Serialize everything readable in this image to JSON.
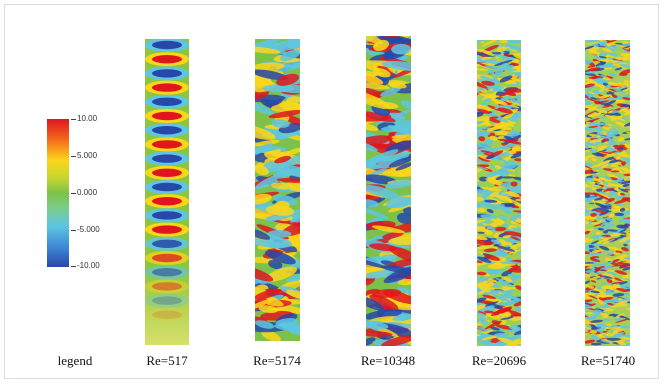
{
  "legend": {
    "caption": "legend",
    "ticks": [
      "10.00",
      "5.000",
      "0.000",
      "-5.000",
      "-10.00"
    ]
  },
  "panels": [
    {
      "caption": "Re=517"
    },
    {
      "caption": "Re=5174"
    },
    {
      "caption": "Re=10348"
    },
    {
      "caption": "Re=20696"
    },
    {
      "caption": "Re=51740"
    }
  ],
  "colors": {
    "max": "#e0161e",
    "high": "#fbd61a",
    "zero": "#7cc24a",
    "low": "#5ec6e2",
    "min": "#2748a8"
  }
}
